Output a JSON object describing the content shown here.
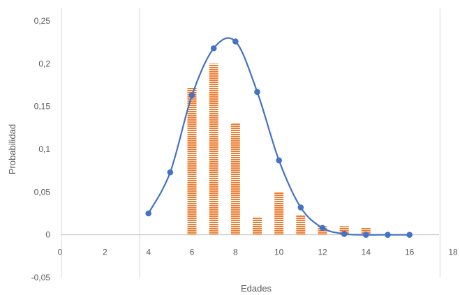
{
  "chart_data": {
    "type": "bar",
    "title": "",
    "xlabel": "Edades",
    "ylabel": "Probabilidad",
    "xlim": [
      0,
      18
    ],
    "ylim": [
      -0.05,
      0.25
    ],
    "xticks": [
      "0",
      "2",
      "4",
      "6",
      "8",
      "10",
      "12",
      "14",
      "16",
      "18"
    ],
    "yticks": [
      "-0,05",
      "0",
      "0,05",
      "0,1",
      "0,15",
      "0,2",
      "0,25"
    ],
    "vertical_gridlines": [
      3.6,
      17.4
    ],
    "grid": false,
    "legend": "none",
    "series": [
      {
        "type": "bar",
        "color": "#ED7D31",
        "pattern": "horizontal-stripes",
        "x": [
          6,
          7,
          8,
          9,
          10,
          11,
          12,
          13,
          14
        ],
        "values": [
          0.172,
          0.2,
          0.13,
          0.02,
          0.05,
          0.023,
          0.01,
          0.01,
          0.008
        ]
      },
      {
        "type": "line",
        "color": "#4472C4",
        "smooth": true,
        "markers": true,
        "x": [
          4,
          5,
          6,
          7,
          8,
          9,
          10,
          11,
          12,
          13,
          14,
          15,
          16
        ],
        "values": [
          0.025,
          0.073,
          0.163,
          0.218,
          0.226,
          0.167,
          0.087,
          0.032,
          0.008,
          0.001,
          0.0,
          0.0,
          0.0
        ]
      }
    ]
  }
}
